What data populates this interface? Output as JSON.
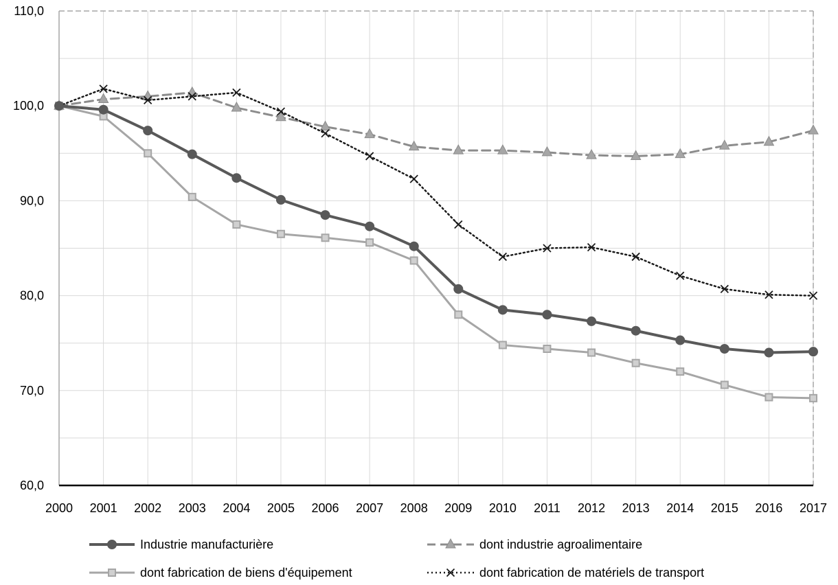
{
  "chart_data": {
    "type": "line",
    "x": [
      "2000",
      "2001",
      "2002",
      "2003",
      "2004",
      "2005",
      "2006",
      "2007",
      "2008",
      "2009",
      "2010",
      "2011",
      "2012",
      "2013",
      "2014",
      "2015",
      "2016",
      "2017"
    ],
    "ylim": [
      60,
      110
    ],
    "yticks": [
      "60,0",
      "70,0",
      "80,0",
      "90,0",
      "100,0",
      "110,0"
    ],
    "grid": true,
    "legend_position": "bottom",
    "series": [
      {
        "name": "Industrie manufacturière",
        "values": [
          100.0,
          99.6,
          97.4,
          94.9,
          92.4,
          90.1,
          88.5,
          87.3,
          85.2,
          80.7,
          78.5,
          78.0,
          77.3,
          76.3,
          75.3,
          74.4,
          74.0,
          74.1
        ],
        "color": "#595959",
        "style": "solid",
        "marker": "circle"
      },
      {
        "name": "dont industrie agroalimentaire",
        "values": [
          100.0,
          100.7,
          101.0,
          101.4,
          99.8,
          98.8,
          97.8,
          97.0,
          95.7,
          95.3,
          95.3,
          95.1,
          94.8,
          94.7,
          94.9,
          95.8,
          96.2,
          97.4
        ],
        "color": "#8c8c8c",
        "style": "dashed",
        "marker": "triangle"
      },
      {
        "name": "dont fabrication de biens d'équipement",
        "values": [
          100.0,
          98.9,
          95.0,
          90.4,
          87.5,
          86.5,
          86.1,
          85.6,
          83.7,
          78.0,
          74.8,
          74.4,
          74.0,
          72.9,
          72.0,
          70.6,
          69.3,
          69.2
        ],
        "color": "#a6a6a6",
        "style": "solid",
        "marker": "square"
      },
      {
        "name": "dont fabrication de matériels de transport",
        "values": [
          100.0,
          101.8,
          100.6,
          101.0,
          101.4,
          99.4,
          97.1,
          94.7,
          92.3,
          87.5,
          84.1,
          85.0,
          85.1,
          84.1,
          82.1,
          80.7,
          80.1,
          80.0
        ],
        "color": "#1a1a1a",
        "style": "dotted",
        "marker": "x"
      }
    ]
  }
}
